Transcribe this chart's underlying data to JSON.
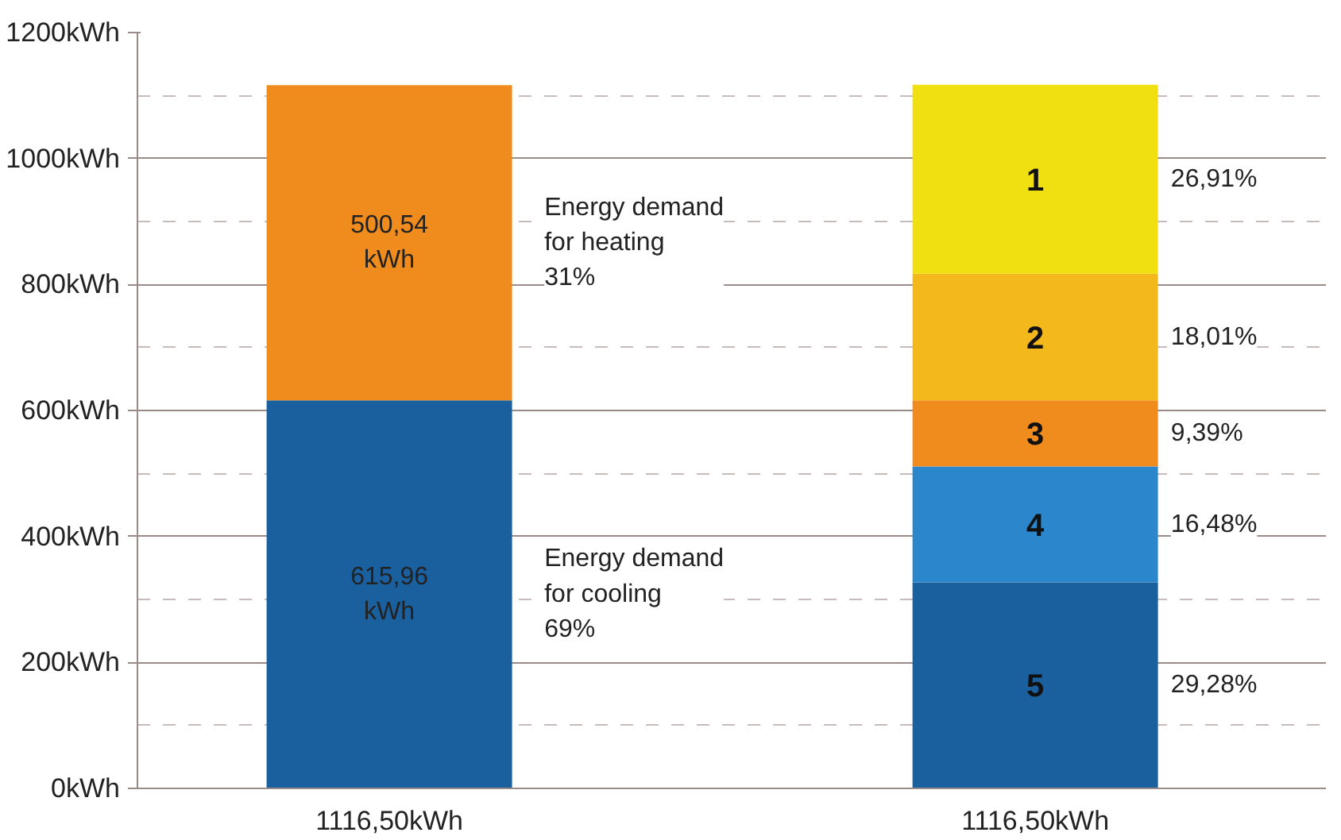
{
  "chart_data": {
    "type": "bar",
    "stacked": true,
    "categories": [
      "1116,50kWh",
      "1116,50kWh"
    ],
    "series": [
      {
        "color": "#1a5f9e",
        "values": [
          615.96,
          null
        ],
        "value_labels": [
          "615,96\nkWh",
          null
        ]
      },
      {
        "color": "#f08c1e",
        "values": [
          500.54,
          null
        ],
        "value_labels": [
          "500,54\nkWh",
          null
        ]
      },
      {
        "name": "5",
        "color": "#1a5f9e",
        "values": [
          null,
          327
        ]
      },
      {
        "name": "4",
        "color": "#2b86cc",
        "values": [
          null,
          184
        ]
      },
      {
        "name": "3",
        "color": "#f08c1e",
        "values": [
          null,
          105
        ]
      },
      {
        "name": "2",
        "color": "#f2b81c",
        "values": [
          null,
          201
        ]
      },
      {
        "name": "1",
        "color": "#f0e012",
        "values": [
          null,
          300
        ]
      }
    ],
    "annotations": [
      "Energy demand\nfor cooling\n69%",
      "Energy demand\nfor heating\n31%",
      "29,28%",
      "16,48%",
      "9,39%",
      "18,01%",
      "26,91%"
    ],
    "ylim": [
      0,
      1200
    ],
    "yticks": [
      {
        "value": 0,
        "label": "0kWh"
      },
      {
        "value": 200,
        "label": "200kWh"
      },
      {
        "value": 400,
        "label": "400kWh"
      },
      {
        "value": 600,
        "label": "600kWh"
      },
      {
        "value": 800,
        "label": "800kWh"
      },
      {
        "value": 1000,
        "label": "1000kWh"
      },
      {
        "value": 1200,
        "label": "1200kWh"
      }
    ],
    "grid": true
  }
}
